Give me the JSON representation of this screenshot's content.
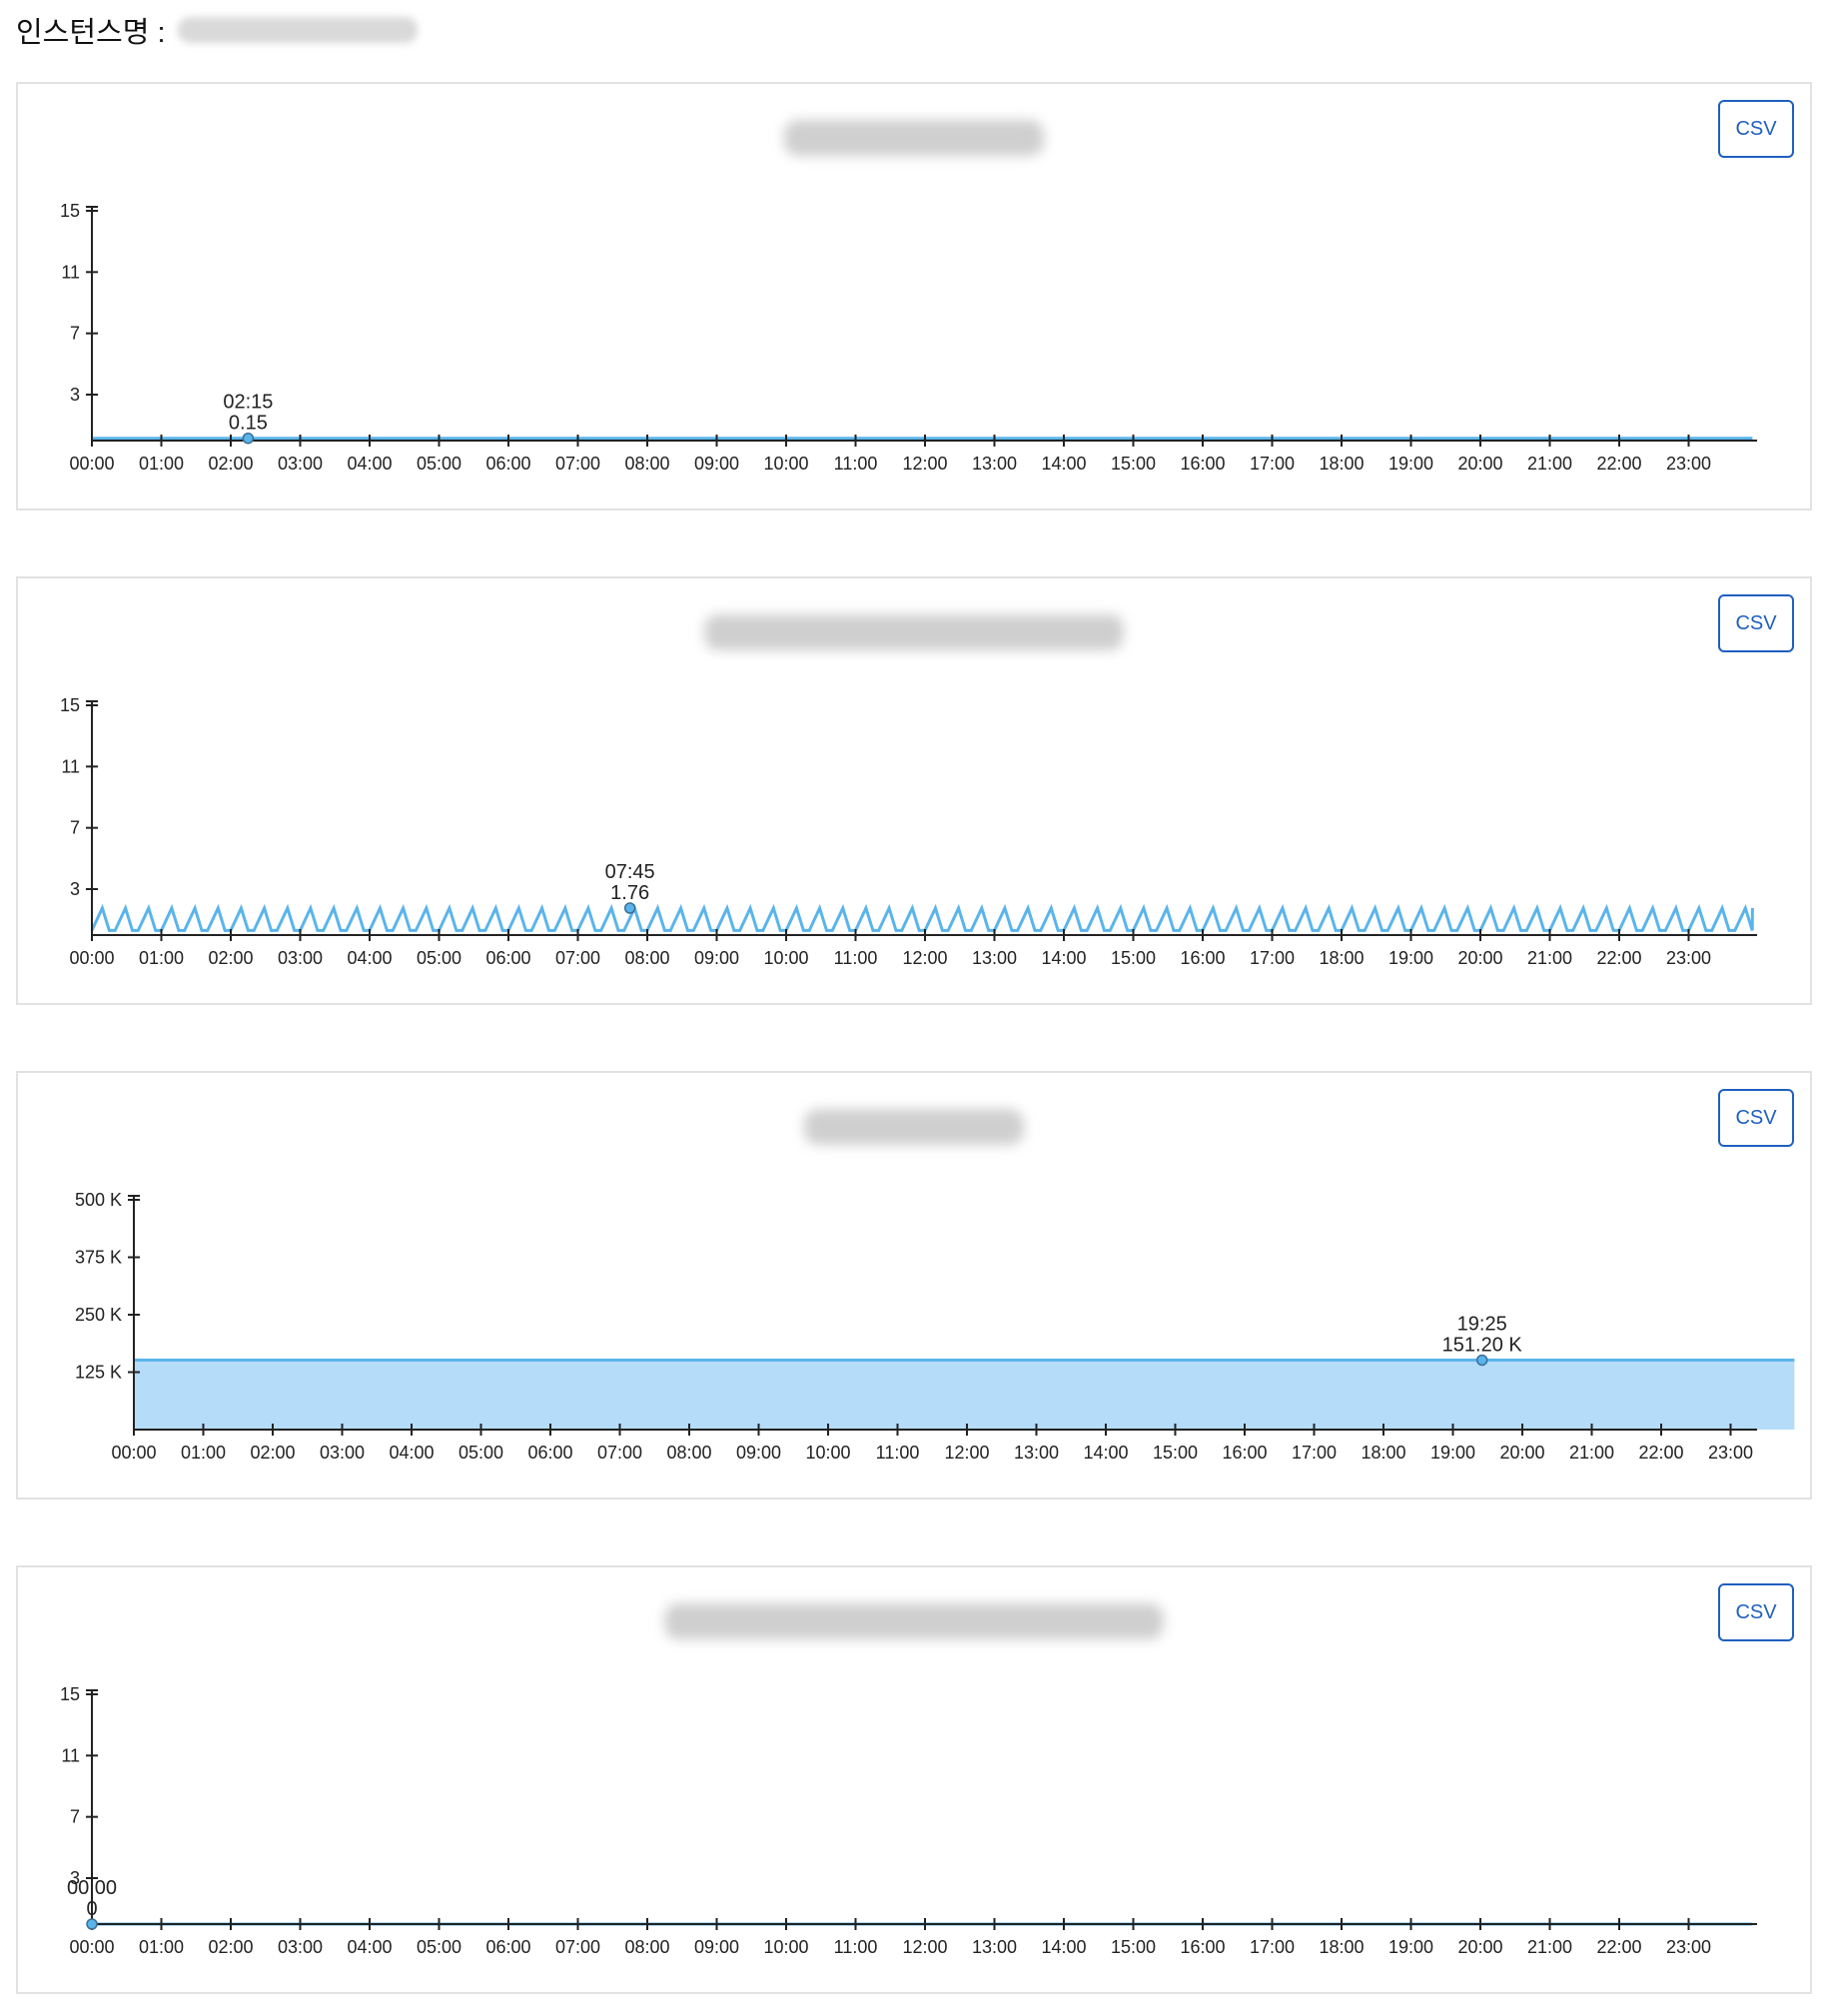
{
  "header": {
    "label": "인스턴스명 :"
  },
  "colors": {
    "line": "#5ab4ec",
    "fill": "#b5dcf9",
    "axis": "#222222",
    "button": "#1f5fbf"
  },
  "chart_data": [
    {
      "type": "line",
      "csv_label": "CSV",
      "x_ticks": [
        "00:00",
        "01:00",
        "02:00",
        "03:00",
        "04:00",
        "05:00",
        "06:00",
        "07:00",
        "08:00",
        "09:00",
        "10:00",
        "11:00",
        "12:00",
        "13:00",
        "14:00",
        "15:00",
        "16:00",
        "17:00",
        "18:00",
        "19:00",
        "20:00",
        "21:00",
        "22:00",
        "23:00"
      ],
      "y_ticks": [
        3,
        7,
        11,
        15
      ],
      "y_tick_labels": [
        "3",
        "7",
        "11",
        "15"
      ],
      "ylim": [
        0,
        15
      ],
      "xlim_hours": [
        0,
        23.92
      ],
      "pattern": "flat",
      "base_value": 0.15,
      "annotation": {
        "time": "02:15",
        "value_label": "0.15",
        "hour": 2.25,
        "value": 0.15
      }
    },
    {
      "type": "line",
      "csv_label": "CSV",
      "x_ticks": [
        "00:00",
        "01:00",
        "02:00",
        "03:00",
        "04:00",
        "05:00",
        "06:00",
        "07:00",
        "08:00",
        "09:00",
        "10:00",
        "11:00",
        "12:00",
        "13:00",
        "14:00",
        "15:00",
        "16:00",
        "17:00",
        "18:00",
        "19:00",
        "20:00",
        "21:00",
        "22:00",
        "23:00"
      ],
      "y_ticks": [
        3,
        7,
        11,
        15
      ],
      "y_tick_labels": [
        "3",
        "7",
        "11",
        "15"
      ],
      "ylim": [
        0,
        15
      ],
      "xlim_hours": [
        0,
        23.92
      ],
      "pattern": "sawtooth",
      "base_value": 0.3,
      "peak_value": 1.76,
      "period_minutes": 20,
      "annotation": {
        "time": "07:45",
        "value_label": "1.76",
        "hour": 7.75,
        "value": 1.76
      }
    },
    {
      "type": "area",
      "csv_label": "CSV",
      "x_ticks": [
        "00:00",
        "01:00",
        "02:00",
        "03:00",
        "04:00",
        "05:00",
        "06:00",
        "07:00",
        "08:00",
        "09:00",
        "10:00",
        "11:00",
        "12:00",
        "13:00",
        "14:00",
        "15:00",
        "16:00",
        "17:00",
        "18:00",
        "19:00",
        "20:00",
        "21:00",
        "22:00",
        "23:00"
      ],
      "y_ticks": [
        125000,
        250000,
        375000,
        500000
      ],
      "y_tick_labels": [
        "125 K",
        "250 K",
        "375 K",
        "500 K"
      ],
      "ylim": [
        0,
        500000
      ],
      "xlim_hours": [
        0,
        23.92
      ],
      "pattern": "flat",
      "base_value": 151200,
      "annotation": {
        "time": "19:25",
        "value_label": "151.20 K",
        "hour": 19.42,
        "value": 151200
      }
    },
    {
      "type": "line",
      "csv_label": "CSV",
      "x_ticks": [
        "00:00",
        "01:00",
        "02:00",
        "03:00",
        "04:00",
        "05:00",
        "06:00",
        "07:00",
        "08:00",
        "09:00",
        "10:00",
        "11:00",
        "12:00",
        "13:00",
        "14:00",
        "15:00",
        "16:00",
        "17:00",
        "18:00",
        "19:00",
        "20:00",
        "21:00",
        "22:00",
        "23:00"
      ],
      "y_ticks": [
        3,
        7,
        11,
        15
      ],
      "y_tick_labels": [
        "3",
        "7",
        "11",
        "15"
      ],
      "ylim": [
        0,
        15
      ],
      "xlim_hours": [
        0,
        23.92
      ],
      "pattern": "flat",
      "base_value": 0,
      "annotation": {
        "time": "00:00",
        "value_label": "0",
        "hour": 0,
        "value": 0
      }
    }
  ]
}
